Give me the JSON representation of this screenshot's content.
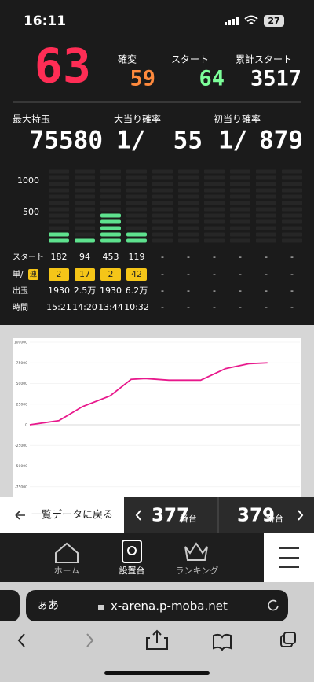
{
  "status_bar": {
    "time": "16:11",
    "battery": "27"
  },
  "counters": {
    "current": 63,
    "kakuhen": {
      "label": "確変",
      "value": 59
    },
    "start": {
      "label": "スタート",
      "value": 64
    },
    "total_start": {
      "label": "累計スタート",
      "value": 3517
    },
    "max_balls": {
      "label": "最大持玉",
      "value": 75580
    },
    "hit_rate": {
      "label": "大当り確率",
      "prefix": "1/",
      "value": 55
    },
    "first_hit_rate": {
      "label": "初当り確率",
      "prefix": "1/",
      "value": 879
    }
  },
  "history": {
    "ylim": [
      0,
      1200
    ],
    "yticks": [
      500,
      1000
    ],
    "labels": {
      "start": "スタート",
      "tan": "単/",
      "ren": "連",
      "payout": "出玉",
      "time": "時間"
    },
    "start": [
      182,
      94,
      453,
      119,
      "-",
      "-",
      "-",
      "-",
      "-",
      "-"
    ],
    "tanren": [
      2,
      17,
      2,
      42,
      "-",
      "-",
      "-",
      "-",
      "-",
      "-"
    ],
    "payout": [
      1930,
      "2.5万",
      1930,
      "6.2万",
      "-",
      "-",
      "-",
      "-",
      "-",
      "-"
    ],
    "time": [
      "15:21",
      "14:20",
      "13:44",
      "10:32",
      "-",
      "-",
      "-",
      "-",
      "-",
      "-"
    ]
  },
  "chart_data": {
    "type": "line",
    "x": [
      0,
      430,
      780,
      1190,
      1500,
      1710,
      2060,
      2530,
      2900,
      3250,
      3520
    ],
    "values": [
      0,
      5000,
      22000,
      35000,
      55000,
      56000,
      54000,
      54000,
      68000,
      74000,
      75000
    ],
    "xlim": [
      0,
      4000
    ],
    "ylim": [
      -100000,
      100000
    ],
    "yticks": [
      100000,
      75000,
      50000,
      25000,
      0,
      -25000,
      -50000,
      -75000
    ],
    "color": "#e8188c",
    "grid": true
  },
  "nav": {
    "back": "一覧データに戻る",
    "prev": {
      "number": 377,
      "unit": "番台"
    },
    "next": {
      "number": 379,
      "unit": "番台"
    }
  },
  "tabs": [
    "ホーム",
    "設置台",
    "ランキング"
  ],
  "browser": {
    "text_size": "ぁあ",
    "url": "x-arena.p-moba.net"
  }
}
